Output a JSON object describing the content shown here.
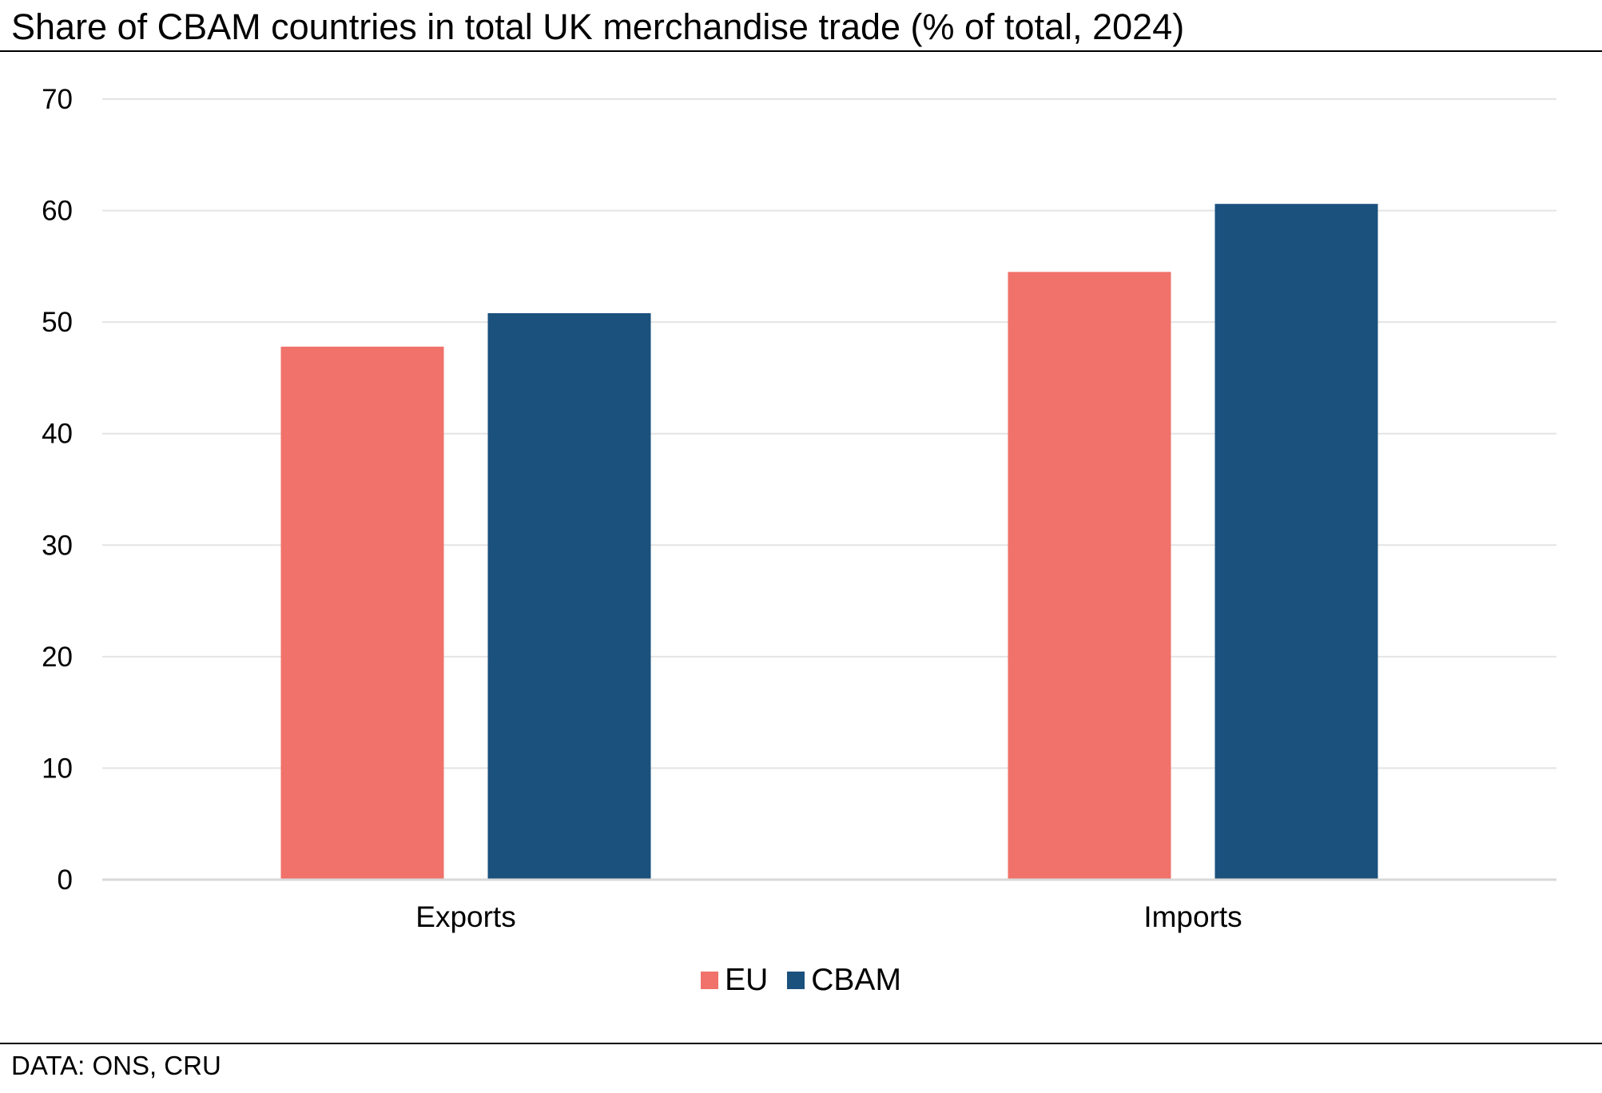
{
  "title": "Share of CBAM countries in total UK merchandise trade (% of total, 2024)",
  "source": "DATA: ONS, CRU",
  "colors": {
    "EU": "#f0726a",
    "CBAM": "#1b517d",
    "grid": "#e4e4e4",
    "axis": "#d9d9d9"
  },
  "chart_data": {
    "type": "bar",
    "title": "Share of CBAM countries in total UK merchandise trade (% of total, 2024)",
    "xlabel": "",
    "ylabel": "",
    "categories": [
      "Exports",
      "Imports"
    ],
    "series": [
      {
        "name": "EU",
        "values": [
          47.8,
          54.5
        ]
      },
      {
        "name": "CBAM",
        "values": [
          50.8,
          60.6
        ]
      }
    ],
    "ylim": [
      0,
      70
    ],
    "yticks": [
      0,
      10,
      20,
      30,
      40,
      50,
      60,
      70
    ],
    "grid": true,
    "legend": "bottom-center"
  }
}
